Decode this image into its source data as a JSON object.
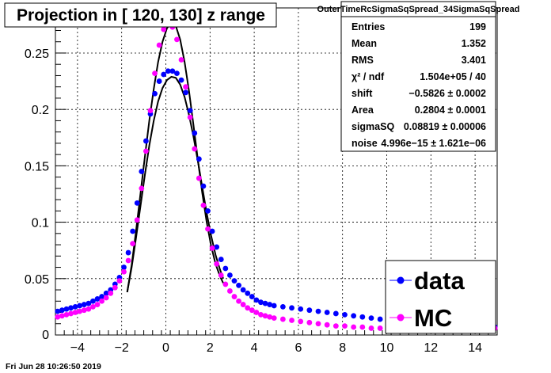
{
  "title": "Projection in [ 120, 130] z range",
  "timestamp": "Fri Jun 28 10:26:50 2019",
  "stats": {
    "name": "OuterTimeRcSigmaSqSpread_34SigmaSqSpread",
    "rows": [
      {
        "label": "Entries",
        "value": "199"
      },
      {
        "label": "Mean",
        "value": "1.352"
      },
      {
        "label": "RMS",
        "value": "3.401"
      },
      {
        "label": "χ² / ndf",
        "value": "1.504e+05 / 40"
      },
      {
        "label": "shift",
        "value": "−0.5826 ± 0.0002"
      },
      {
        "label": "Area",
        "value": "0.2804 ± 0.0001"
      },
      {
        "label": "sigmaSQ",
        "value": "0.08819 ± 0.00006"
      },
      {
        "label": "noise",
        "value": "4.996e−15 ± 1.621e−06"
      }
    ]
  },
  "legend": [
    {
      "label": "data",
      "color": "#0000ff"
    },
    {
      "label": "MC",
      "color": "#ff00ff"
    }
  ],
  "chart_data": {
    "type": "scatter",
    "xlim": [
      -5,
      15
    ],
    "ylim": [
      0,
      0.29
    ],
    "xticks": [
      -4,
      -2,
      0,
      2,
      4,
      6,
      8,
      10,
      12,
      14
    ],
    "xtick_labels": [
      "−4",
      "−2",
      "0",
      "2",
      "4",
      "6",
      "8",
      "10",
      "12",
      "14"
    ],
    "yticks": [
      0.05,
      0.1,
      0.15,
      0.2,
      0.25
    ],
    "ytick_labels": [
      "0.05",
      "0.1",
      "0.15",
      "0.2",
      "0.25"
    ],
    "grid": true,
    "series": [
      {
        "name": "data",
        "color": "#0000ff",
        "points": [
          [
            -4.9,
            0.021
          ],
          [
            -4.7,
            0.022
          ],
          [
            -4.5,
            0.023
          ],
          [
            -4.3,
            0.024
          ],
          [
            -4.1,
            0.025
          ],
          [
            -3.9,
            0.026
          ],
          [
            -3.7,
            0.027
          ],
          [
            -3.5,
            0.028
          ],
          [
            -3.3,
            0.03
          ],
          [
            -3.1,
            0.032
          ],
          [
            -2.9,
            0.034
          ],
          [
            -2.7,
            0.037
          ],
          [
            -2.5,
            0.04
          ],
          [
            -2.3,
            0.045
          ],
          [
            -2.1,
            0.051
          ],
          [
            -1.9,
            0.06
          ],
          [
            -1.7,
            0.073
          ],
          [
            -1.5,
            0.092
          ],
          [
            -1.3,
            0.117
          ],
          [
            -1.1,
            0.145
          ],
          [
            -0.9,
            0.172
          ],
          [
            -0.7,
            0.196
          ],
          [
            -0.5,
            0.214
          ],
          [
            -0.3,
            0.225
          ],
          [
            -0.1,
            0.231
          ],
          [
            0.1,
            0.234
          ],
          [
            0.3,
            0.234
          ],
          [
            0.5,
            0.232
          ],
          [
            0.7,
            0.226
          ],
          [
            0.9,
            0.215
          ],
          [
            1.1,
            0.199
          ],
          [
            1.3,
            0.179
          ],
          [
            1.5,
            0.156
          ],
          [
            1.7,
            0.132
          ],
          [
            1.9,
            0.11
          ],
          [
            2.1,
            0.092
          ],
          [
            2.3,
            0.078
          ],
          [
            2.5,
            0.067
          ],
          [
            2.7,
            0.059
          ],
          [
            2.9,
            0.053
          ],
          [
            3.1,
            0.048
          ],
          [
            3.3,
            0.044
          ],
          [
            3.5,
            0.04
          ],
          [
            3.7,
            0.037
          ],
          [
            3.9,
            0.034
          ],
          [
            4.1,
            0.031
          ],
          [
            4.3,
            0.029
          ],
          [
            4.5,
            0.028
          ],
          [
            4.7,
            0.027
          ],
          [
            4.9,
            0.026
          ],
          [
            5.3,
            0.025
          ],
          [
            5.7,
            0.024
          ],
          [
            6.1,
            0.023
          ],
          [
            6.5,
            0.022
          ],
          [
            6.9,
            0.021
          ],
          [
            7.3,
            0.02
          ],
          [
            7.7,
            0.019
          ],
          [
            8.1,
            0.018
          ],
          [
            8.5,
            0.017
          ],
          [
            8.9,
            0.016
          ],
          [
            9.3,
            0.015
          ],
          [
            9.7,
            0.014
          ],
          [
            10.1,
            0.013
          ],
          [
            10.5,
            0.012
          ],
          [
            10.9,
            0.011
          ],
          [
            11.3,
            0.01
          ],
          [
            11.7,
            0.01
          ],
          [
            12.1,
            0.009
          ],
          [
            12.5,
            0.009
          ],
          [
            12.9,
            0.008
          ],
          [
            13.3,
            0.008
          ],
          [
            13.7,
            0.008
          ],
          [
            14.1,
            0.007
          ],
          [
            14.5,
            0.007
          ],
          [
            14.9,
            0.007
          ]
        ]
      },
      {
        "name": "MC",
        "color": "#ff00ff",
        "points": [
          [
            -4.9,
            0.016
          ],
          [
            -4.7,
            0.017
          ],
          [
            -4.5,
            0.018
          ],
          [
            -4.3,
            0.019
          ],
          [
            -4.1,
            0.02
          ],
          [
            -3.9,
            0.021
          ],
          [
            -3.7,
            0.022
          ],
          [
            -3.5,
            0.023
          ],
          [
            -3.3,
            0.025
          ],
          [
            -3.1,
            0.027
          ],
          [
            -2.9,
            0.03
          ],
          [
            -2.7,
            0.033
          ],
          [
            -2.5,
            0.037
          ],
          [
            -2.3,
            0.042
          ],
          [
            -2.1,
            0.048
          ],
          [
            -1.9,
            0.056
          ],
          [
            -1.7,
            0.066
          ],
          [
            -1.5,
            0.081
          ],
          [
            -1.3,
            0.102
          ],
          [
            -1.1,
            0.13
          ],
          [
            -0.9,
            0.163
          ],
          [
            -0.7,
            0.199
          ],
          [
            -0.5,
            0.232
          ],
          [
            -0.3,
            0.257
          ],
          [
            -0.1,
            0.271
          ],
          [
            0.1,
            0.276
          ],
          [
            0.3,
            0.273
          ],
          [
            0.5,
            0.262
          ],
          [
            0.7,
            0.244
          ],
          [
            0.9,
            0.22
          ],
          [
            1.1,
            0.193
          ],
          [
            1.3,
            0.165
          ],
          [
            1.5,
            0.139
          ],
          [
            1.7,
            0.115
          ],
          [
            1.9,
            0.094
          ],
          [
            2.1,
            0.077
          ],
          [
            2.3,
            0.063
          ],
          [
            2.5,
            0.053
          ],
          [
            2.7,
            0.045
          ],
          [
            2.9,
            0.039
          ],
          [
            3.1,
            0.034
          ],
          [
            3.3,
            0.03
          ],
          [
            3.5,
            0.027
          ],
          [
            3.7,
            0.024
          ],
          [
            3.9,
            0.022
          ],
          [
            4.1,
            0.02
          ],
          [
            4.3,
            0.018
          ],
          [
            4.5,
            0.017
          ],
          [
            4.7,
            0.016
          ],
          [
            4.9,
            0.015
          ],
          [
            5.3,
            0.014
          ],
          [
            5.7,
            0.013
          ],
          [
            6.1,
            0.012
          ],
          [
            6.5,
            0.011
          ],
          [
            6.9,
            0.01
          ],
          [
            7.3,
            0.009
          ],
          [
            7.7,
            0.008
          ],
          [
            8.1,
            0.008
          ],
          [
            8.5,
            0.007
          ],
          [
            8.9,
            0.007
          ],
          [
            9.3,
            0.006
          ],
          [
            9.7,
            0.006
          ],
          [
            10.1,
            0.006
          ],
          [
            10.5,
            0.005
          ],
          [
            10.9,
            0.005
          ],
          [
            11.3,
            0.005
          ],
          [
            11.7,
            0.005
          ],
          [
            12.1,
            0.005
          ],
          [
            12.5,
            0.005
          ],
          [
            12.9,
            0.005
          ],
          [
            13.3,
            0.005
          ],
          [
            13.7,
            0.005
          ],
          [
            14.1,
            0.005
          ],
          [
            14.5,
            0.006
          ],
          [
            14.9,
            0.006
          ]
        ]
      }
    ],
    "fits": [
      {
        "color": "#000000",
        "points": [
          [
            -1.75,
            0.038
          ],
          [
            -1.55,
            0.062
          ],
          [
            -1.35,
            0.092
          ],
          [
            -1.15,
            0.125
          ],
          [
            -0.95,
            0.158
          ],
          [
            -0.75,
            0.19
          ],
          [
            -0.55,
            0.218
          ],
          [
            -0.35,
            0.242
          ],
          [
            -0.15,
            0.26
          ],
          [
            0.05,
            0.272
          ],
          [
            0.25,
            0.277
          ],
          [
            0.45,
            0.274
          ],
          [
            0.65,
            0.262
          ],
          [
            0.85,
            0.242
          ],
          [
            1.05,
            0.216
          ],
          [
            1.25,
            0.186
          ],
          [
            1.45,
            0.155
          ],
          [
            1.65,
            0.126
          ],
          [
            1.85,
            0.1
          ],
          [
            2.05,
            0.079
          ],
          [
            2.25,
            0.063
          ],
          [
            2.45,
            0.052
          ],
          [
            2.6,
            0.046
          ]
        ]
      },
      {
        "color": "#000000",
        "points": [
          [
            -1.75,
            0.038
          ],
          [
            -1.55,
            0.06
          ],
          [
            -1.35,
            0.086
          ],
          [
            -1.15,
            0.114
          ],
          [
            -0.95,
            0.142
          ],
          [
            -0.75,
            0.168
          ],
          [
            -0.55,
            0.19
          ],
          [
            -0.35,
            0.207
          ],
          [
            -0.15,
            0.219
          ],
          [
            0.05,
            0.226
          ],
          [
            0.25,
            0.229
          ],
          [
            0.45,
            0.228
          ],
          [
            0.65,
            0.222
          ],
          [
            0.85,
            0.211
          ],
          [
            1.05,
            0.195
          ],
          [
            1.25,
            0.176
          ],
          [
            1.45,
            0.154
          ],
          [
            1.65,
            0.131
          ],
          [
            1.85,
            0.108
          ],
          [
            2.05,
            0.088
          ],
          [
            2.25,
            0.071
          ],
          [
            2.45,
            0.058
          ],
          [
            2.6,
            0.05
          ]
        ]
      }
    ]
  }
}
